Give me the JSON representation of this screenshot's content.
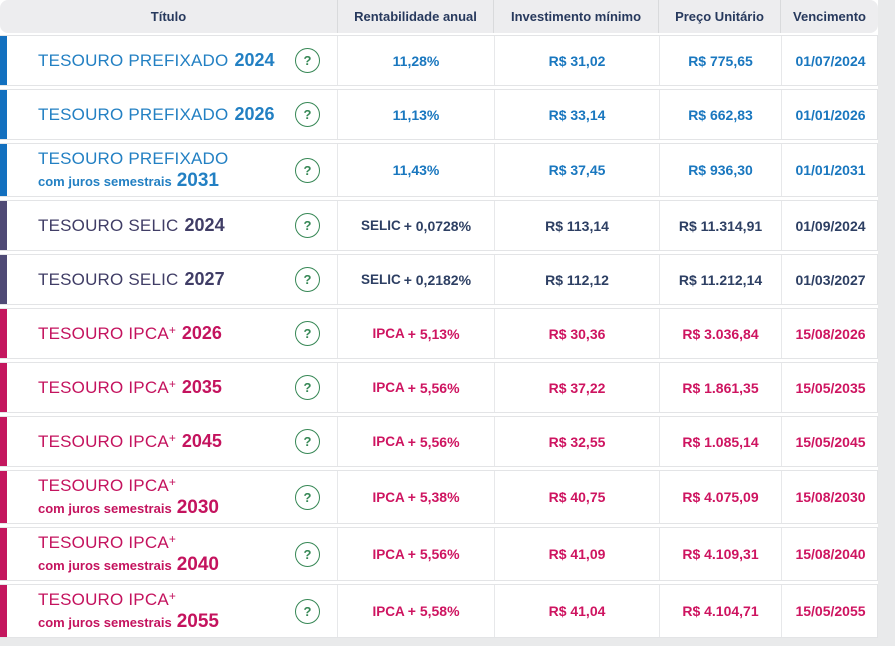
{
  "table": {
    "help_icon": "?",
    "columns": [
      {
        "label": "Título"
      },
      {
        "label": "Rentabilidade anual"
      },
      {
        "label": "Investimento mínimo"
      },
      {
        "label": "Preço Unitário"
      },
      {
        "label": "Vencimento"
      }
    ],
    "rows": [
      {
        "theme": "prefixado",
        "title": "TESOURO PREFIXADO",
        "sup": "",
        "subtitle": "",
        "year": "2024",
        "rate_label": "",
        "rate": "11,28%",
        "min_investment": "R$ 31,02",
        "unit_price": "R$ 775,65",
        "maturity": "01/07/2024"
      },
      {
        "theme": "prefixado",
        "title": "TESOURO PREFIXADO",
        "sup": "",
        "subtitle": "",
        "year": "2026",
        "rate_label": "",
        "rate": "11,13%",
        "min_investment": "R$ 33,14",
        "unit_price": "R$ 662,83",
        "maturity": "01/01/2026"
      },
      {
        "theme": "prefixado",
        "title": "TESOURO PREFIXADO",
        "sup": "",
        "subtitle": "com juros semestrais",
        "year": "2031",
        "rate_label": "",
        "rate": "11,43%",
        "min_investment": "R$ 37,45",
        "unit_price": "R$ 936,30",
        "maturity": "01/01/2031"
      },
      {
        "theme": "selic",
        "title": "TESOURO SELIC",
        "sup": "",
        "subtitle": "",
        "year": "2024",
        "rate_label": "SELIC",
        "rate": "+ 0,0728%",
        "min_investment": "R$ 113,14",
        "unit_price": "R$ 11.314,91",
        "maturity": "01/09/2024"
      },
      {
        "theme": "selic",
        "title": "TESOURO SELIC",
        "sup": "",
        "subtitle": "",
        "year": "2027",
        "rate_label": "SELIC",
        "rate": "+ 0,2182%",
        "min_investment": "R$ 112,12",
        "unit_price": "R$ 11.212,14",
        "maturity": "01/03/2027"
      },
      {
        "theme": "ipca",
        "title": "TESOURO IPCA",
        "sup": "+",
        "subtitle": "",
        "year": "2026",
        "rate_label": "IPCA",
        "rate": "+ 5,13%",
        "min_investment": "R$ 30,36",
        "unit_price": "R$ 3.036,84",
        "maturity": "15/08/2026"
      },
      {
        "theme": "ipca",
        "title": "TESOURO IPCA",
        "sup": "+",
        "subtitle": "",
        "year": "2035",
        "rate_label": "IPCA",
        "rate": "+ 5,56%",
        "min_investment": "R$ 37,22",
        "unit_price": "R$ 1.861,35",
        "maturity": "15/05/2035"
      },
      {
        "theme": "ipca",
        "title": "TESOURO IPCA",
        "sup": "+",
        "subtitle": "",
        "year": "2045",
        "rate_label": "IPCA",
        "rate": "+ 5,56%",
        "min_investment": "R$ 32,55",
        "unit_price": "R$ 1.085,14",
        "maturity": "15/05/2045"
      },
      {
        "theme": "ipca",
        "title": "TESOURO IPCA",
        "sup": "+",
        "subtitle": "com juros semestrais",
        "year": "2030",
        "rate_label": "IPCA",
        "rate": "+ 5,38%",
        "min_investment": "R$ 40,75",
        "unit_price": "R$ 4.075,09",
        "maturity": "15/08/2030"
      },
      {
        "theme": "ipca",
        "title": "TESOURO IPCA",
        "sup": "+",
        "subtitle": "com juros semestrais",
        "year": "2040",
        "rate_label": "IPCA",
        "rate": "+ 5,56%",
        "min_investment": "R$ 41,09",
        "unit_price": "R$ 4.109,31",
        "maturity": "15/08/2040"
      },
      {
        "theme": "ipca",
        "title": "TESOURO IPCA",
        "sup": "+",
        "subtitle": "com juros semestrais",
        "year": "2055",
        "rate_label": "IPCA",
        "rate": "+ 5,58%",
        "min_investment": "R$ 41,04",
        "unit_price": "R$ 4.104,71",
        "maturity": "15/05/2055"
      }
    ]
  },
  "colors": {
    "accent_blue": "#1370bf",
    "accent_purple": "#4f4a75",
    "accent_pink": "#c4175e",
    "help_green": "#368755",
    "header_text": "#27395d",
    "header_bg": "#ededef"
  }
}
